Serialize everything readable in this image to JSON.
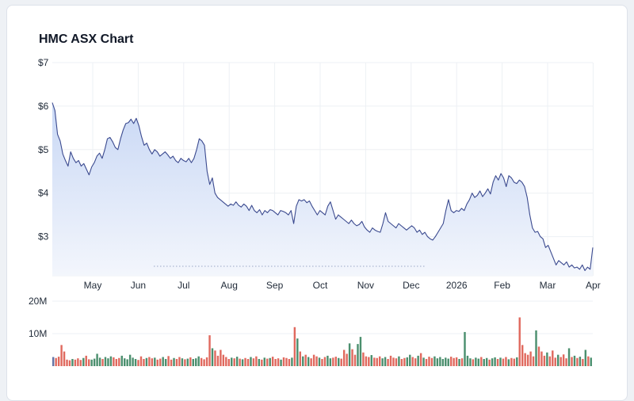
{
  "chart_title": "HMC ASX Chart",
  "chart_data": [
    {
      "type": "area",
      "ylabel": "",
      "xlabel": "",
      "ylim": [
        2.1,
        7
      ],
      "yticks": [
        3,
        4,
        5,
        6,
        7
      ],
      "ytick_labels": [
        "$3",
        "$4",
        "$5",
        "$6",
        "$7"
      ],
      "x_labels": [
        "May",
        "Jun",
        "Jul",
        "Aug",
        "Sep",
        "Oct",
        "Nov",
        "Dec",
        "2026",
        "Feb",
        "Mar",
        "Apr"
      ],
      "series": [
        {
          "values": [
            6.08,
            5.9,
            5.35,
            5.2,
            4.9,
            4.75,
            4.62,
            4.95,
            4.8,
            4.7,
            4.75,
            4.62,
            4.68,
            4.55,
            4.42,
            4.6,
            4.7,
            4.85,
            4.92,
            4.8,
            5.0,
            5.25,
            5.28,
            5.18,
            5.05,
            5.0,
            5.25,
            5.45,
            5.6,
            5.62,
            5.7,
            5.6,
            5.72,
            5.55,
            5.3,
            5.1,
            5.15,
            5.0,
            4.9,
            5.0,
            4.95,
            4.85,
            4.9,
            4.95,
            4.88,
            4.8,
            4.85,
            4.75,
            4.7,
            4.8,
            4.75,
            4.72,
            4.8,
            4.7,
            4.8,
            5.0,
            5.25,
            5.2,
            5.1,
            4.5,
            4.2,
            4.35,
            4.0,
            3.9,
            3.85,
            3.8,
            3.75,
            3.7,
            3.75,
            3.72,
            3.8,
            3.72,
            3.68,
            3.75,
            3.7,
            3.6,
            3.72,
            3.6,
            3.55,
            3.62,
            3.5,
            3.6,
            3.55,
            3.62,
            3.6,
            3.55,
            3.5,
            3.6,
            3.58,
            3.55,
            3.5,
            3.6,
            3.3,
            3.7,
            3.85,
            3.82,
            3.85,
            3.78,
            3.82,
            3.7,
            3.6,
            3.5,
            3.6,
            3.55,
            3.5,
            3.7,
            3.8,
            3.6,
            3.4,
            3.5,
            3.45,
            3.4,
            3.35,
            3.3,
            3.38,
            3.3,
            3.25,
            3.28,
            3.35,
            3.22,
            3.15,
            3.1,
            3.2,
            3.15,
            3.12,
            3.1,
            3.3,
            3.55,
            3.35,
            3.3,
            3.25,
            3.2,
            3.3,
            3.25,
            3.2,
            3.15,
            3.2,
            3.25,
            3.2,
            3.1,
            3.15,
            3.05,
            3.1,
            3.0,
            2.95,
            2.92,
            3.0,
            3.1,
            3.2,
            3.3,
            3.6,
            3.85,
            3.6,
            3.55,
            3.6,
            3.58,
            3.65,
            3.6,
            3.75,
            3.85,
            4.0,
            3.9,
            3.95,
            4.05,
            3.92,
            4.0,
            4.1,
            3.98,
            4.25,
            4.4,
            4.3,
            4.45,
            4.35,
            4.15,
            4.4,
            4.35,
            4.25,
            4.22,
            4.3,
            4.25,
            4.15,
            3.9,
            3.5,
            3.2,
            3.1,
            3.12,
            3.0,
            2.95,
            2.75,
            2.8,
            2.65,
            2.5,
            2.35,
            2.45,
            2.4,
            2.35,
            2.42,
            2.3,
            2.35,
            2.28,
            2.3,
            2.25,
            2.35,
            2.22,
            2.3,
            2.25,
            2.75
          ]
        }
      ]
    },
    {
      "type": "bar",
      "ylim": [
        0,
        20000000
      ],
      "yticks": [
        10000000,
        20000000
      ],
      "ytick_labels": [
        "10M",
        "20M"
      ],
      "series": [
        {
          "name": "volume",
          "values": [
            2.8,
            2.5,
            2.9,
            6.5,
            4.5,
            2.0,
            1.8,
            2.2,
            2.0,
            2.4,
            1.9,
            2.5,
            3.2,
            2.1,
            2.0,
            2.3,
            3.8,
            2.6,
            2.2,
            2.8,
            2.4,
            3.0,
            2.7,
            2.2,
            2.5,
            3.2,
            2.4,
            2.1,
            3.5,
            2.6,
            2.2,
            1.9,
            3.0,
            2.2,
            2.5,
            2.8,
            2.4,
            2.6,
            2.0,
            2.3,
            2.8,
            2.2,
            3.1,
            2.0,
            2.5,
            2.2,
            2.8,
            2.4,
            2.1,
            2.3,
            2.7,
            2.2,
            2.4,
            3.0,
            2.5,
            2.1,
            2.7,
            9.5,
            5.5,
            4.8,
            3.2,
            5.0,
            3.5,
            2.8,
            2.2,
            2.6,
            2.4,
            2.9,
            2.3,
            2.1,
            2.5,
            2.2,
            2.8,
            2.4,
            3.0,
            2.2,
            2.0,
            2.6,
            2.3,
            2.5,
            2.9,
            2.2,
            2.4,
            2.0,
            2.7,
            2.5,
            2.2,
            2.6,
            12.0,
            8.5,
            4.5,
            3.0,
            3.5,
            2.8,
            2.4,
            3.5,
            3.0,
            2.6,
            2.2,
            2.8,
            3.2,
            2.4,
            2.6,
            2.9,
            2.5,
            2.3,
            5.0,
            3.8,
            7.0,
            5.2,
            3.5,
            6.8,
            9.0,
            4.2,
            3.0,
            2.8,
            3.4,
            2.6,
            2.5,
            3.0,
            2.4,
            2.8,
            2.2,
            3.2,
            2.6,
            2.4,
            3.0,
            2.2,
            2.5,
            2.7,
            3.5,
            2.8,
            2.4,
            3.2,
            4.0,
            2.6,
            2.2,
            2.9,
            2.5,
            3.0,
            2.4,
            2.8,
            2.2,
            2.6,
            2.3,
            2.9,
            2.5,
            2.7,
            2.2,
            2.4,
            10.5,
            3.2,
            2.4,
            2.1,
            2.6,
            2.3,
            2.8,
            2.2,
            2.5,
            2.0,
            2.4,
            2.7,
            2.2,
            2.6,
            2.3,
            2.8,
            2.1,
            2.5,
            2.3,
            2.7,
            15.0,
            6.5,
            4.0,
            3.5,
            4.5,
            3.0,
            11.0,
            6.0,
            4.5,
            3.2,
            4.2,
            3.0,
            4.8,
            2.6,
            3.5,
            2.8,
            3.6,
            2.4,
            5.5,
            2.8,
            3.2,
            2.5,
            2.9,
            2.2,
            5.0,
            3.0,
            2.6
          ]
        }
      ]
    }
  ],
  "colors": {
    "line": "#3b4a8f",
    "area_top": "#c9d8f5",
    "area_bottom": "#f3f6fc",
    "grid": "#edf0f4",
    "volume_down": "#e0695e",
    "volume_up": "#4b8f6e",
    "volume_neutral": "#6474a6"
  }
}
